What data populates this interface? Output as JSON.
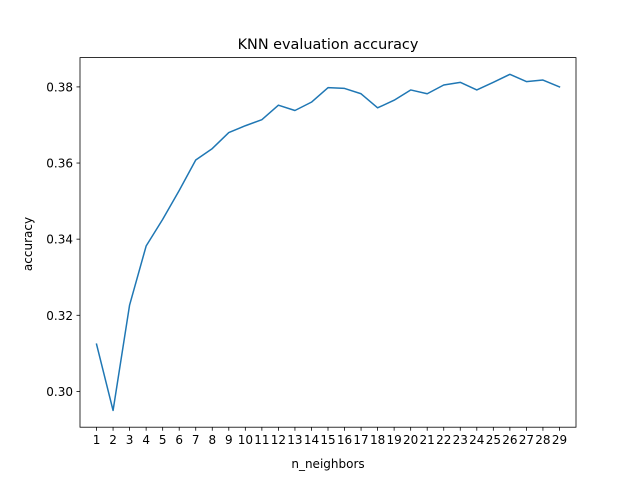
{
  "chart_data": {
    "type": "line",
    "title": "KNN evaluation accuracy",
    "xlabel": "n_neighbors",
    "ylabel": "accuracy",
    "x": [
      1,
      2,
      3,
      4,
      5,
      6,
      7,
      8,
      9,
      10,
      11,
      12,
      13,
      14,
      15,
      16,
      17,
      18,
      19,
      20,
      21,
      22,
      23,
      24,
      25,
      26,
      27,
      28,
      29
    ],
    "series": [
      {
        "color": "#1f77b4",
        "values": [
          0.3124,
          0.295,
          0.3227,
          0.3382,
          0.3452,
          0.3528,
          0.3608,
          0.3638,
          0.368,
          0.3698,
          0.3714,
          0.3752,
          0.3738,
          0.376,
          0.3798,
          0.3796,
          0.3782,
          0.3745,
          0.3765,
          0.3792,
          0.3782,
          0.3805,
          0.3812,
          0.3792,
          0.3812,
          0.3833,
          0.3814,
          0.3818,
          0.38
        ]
      }
    ],
    "xticks": [
      1,
      2,
      3,
      4,
      5,
      6,
      7,
      8,
      9,
      10,
      11,
      12,
      13,
      14,
      15,
      16,
      17,
      18,
      19,
      20,
      21,
      22,
      23,
      24,
      25,
      26,
      27,
      28,
      29
    ],
    "yticks": [
      0.3,
      0.32,
      0.34,
      0.36,
      0.38
    ],
    "ytick_labels": [
      "0.30",
      "0.32",
      "0.34",
      "0.36",
      "0.38"
    ],
    "xlim": [
      0,
      30
    ],
    "ylim": [
      0.2906,
      0.3877
    ],
    "grid": false,
    "legend": "none"
  }
}
